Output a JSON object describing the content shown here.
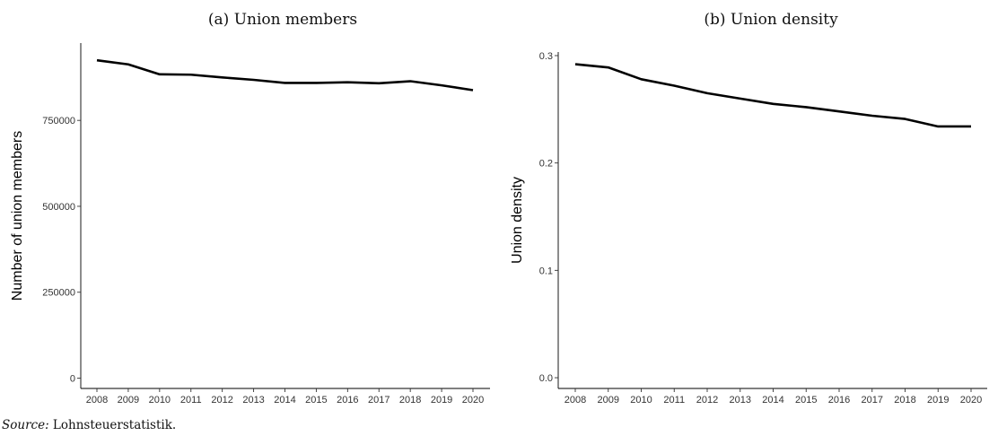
{
  "chart_data": [
    {
      "type": "line",
      "title": "(a) Union members",
      "xlabel": "",
      "ylabel": "Number of union members",
      "x": [
        "2008",
        "2009",
        "2010",
        "2011",
        "2012",
        "2013",
        "2014",
        "2015",
        "2016",
        "2017",
        "2018",
        "2019",
        "2020"
      ],
      "series": [
        {
          "values": [
            925000,
            913000,
            884000,
            883000,
            875000,
            868000,
            859000,
            859000,
            861000,
            858000,
            864000,
            852000,
            838000
          ]
        }
      ],
      "ylim": [
        -30000,
        975000
      ],
      "yticks": [
        0,
        250000,
        500000,
        750000
      ],
      "ytick_labels": [
        "0",
        "250000",
        "500000",
        "750000"
      ],
      "grid": false,
      "line_color": "#000000"
    },
    {
      "type": "line",
      "title": "(b) Union density",
      "xlabel": "",
      "ylabel": "Union density",
      "x": [
        "2008",
        "2009",
        "2010",
        "2011",
        "2012",
        "2013",
        "2014",
        "2015",
        "2016",
        "2017",
        "2018",
        "2019",
        "2020"
      ],
      "series": [
        {
          "values": [
            0.292,
            0.289,
            0.278,
            0.272,
            0.265,
            0.26,
            0.255,
            0.252,
            0.248,
            0.244,
            0.241,
            0.234,
            0.234
          ]
        }
      ],
      "ylim": [
        -0.01,
        0.305
      ],
      "yticks": [
        0.0,
        0.1,
        0.2,
        0.3
      ],
      "ytick_labels": [
        "0.0",
        "0.1",
        "0.2",
        "0.3"
      ],
      "grid": false,
      "line_color": "#000000"
    }
  ],
  "source": {
    "prefix": "Source:",
    "text": " Lohnsteuerstatistik."
  }
}
